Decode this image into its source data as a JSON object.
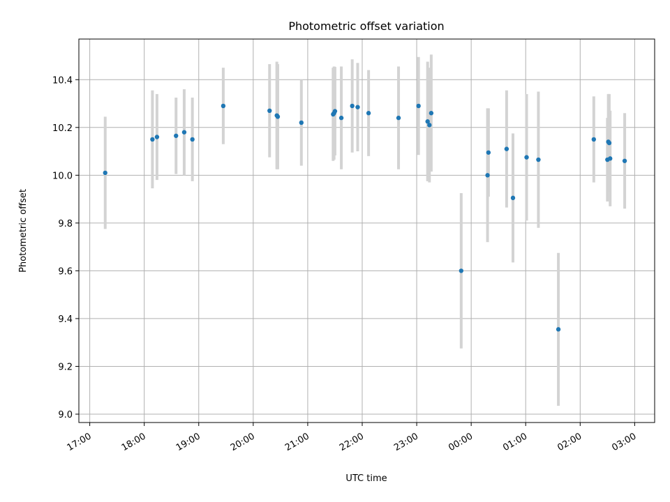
{
  "chart_data": {
    "type": "scatter",
    "title": "Photometric offset variation",
    "xlabel": "UTC time",
    "ylabel": "Photometric offset",
    "x_ticks": [
      "17:00",
      "18:00",
      "19:00",
      "20:00",
      "21:00",
      "22:00",
      "23:00",
      "00:00",
      "01:00",
      "02:00",
      "03:00"
    ],
    "y_ticks": [
      "9.0",
      "9.2",
      "9.4",
      "9.6",
      "9.8",
      "10.0",
      "10.2",
      "10.4"
    ],
    "x_range": [
      "16:48",
      "03:22"
    ],
    "ylim": [
      8.965,
      10.57
    ],
    "grid": true,
    "marker_color": "#1f77b4",
    "errorbar_color": "#d3d3d3",
    "points": [
      {
        "x": "17:17",
        "y": 10.01,
        "yerr": 0.235
      },
      {
        "x": "18:09",
        "y": 10.15,
        "yerr": 0.205
      },
      {
        "x": "18:14",
        "y": 10.16,
        "yerr": 0.18
      },
      {
        "x": "18:35",
        "y": 10.165,
        "yerr": 0.16
      },
      {
        "x": "18:44",
        "y": 10.18,
        "yerr": 0.18
      },
      {
        "x": "18:53",
        "y": 10.15,
        "yerr": 0.175
      },
      {
        "x": "19:27",
        "y": 10.29,
        "yerr": 0.16
      },
      {
        "x": "20:18",
        "y": 10.27,
        "yerr": 0.195
      },
      {
        "x": "20:26",
        "y": 10.25,
        "yerr": 0.225
      },
      {
        "x": "20:27",
        "y": 10.245,
        "yerr": 0.22
      },
      {
        "x": "20:53",
        "y": 10.22,
        "yerr": 0.18
      },
      {
        "x": "21:28",
        "y": 10.255,
        "yerr": 0.195
      },
      {
        "x": "21:29",
        "y": 10.26,
        "yerr": 0.195
      },
      {
        "x": "21:30",
        "y": 10.268,
        "yerr": 0.185
      },
      {
        "x": "21:37",
        "y": 10.24,
        "yerr": 0.215
      },
      {
        "x": "21:49",
        "y": 10.29,
        "yerr": 0.195
      },
      {
        "x": "21:55",
        "y": 10.285,
        "yerr": 0.185
      },
      {
        "x": "22:07",
        "y": 10.26,
        "yerr": 0.18
      },
      {
        "x": "22:40",
        "y": 10.24,
        "yerr": 0.215
      },
      {
        "x": "23:02",
        "y": 10.29,
        "yerr": 0.205
      },
      {
        "x": "23:12",
        "y": 10.225,
        "yerr": 0.25
      },
      {
        "x": "23:14",
        "y": 10.21,
        "yerr": 0.24
      },
      {
        "x": "23:16",
        "y": 10.26,
        "yerr": 0.245
      },
      {
        "x": "23:49",
        "y": 9.6,
        "yerr": 0.325
      },
      {
        "x": "00:18",
        "y": 10.0,
        "yerr": 0.28
      },
      {
        "x": "00:19",
        "y": 10.095,
        "yerr": 0.185
      },
      {
        "x": "00:39",
        "y": 10.11,
        "yerr": 0.245
      },
      {
        "x": "00:46",
        "y": 9.905,
        "yerr": 0.27
      },
      {
        "x": "01:01",
        "y": 10.075,
        "yerr": 0.265
      },
      {
        "x": "01:14",
        "y": 10.065,
        "yerr": 0.285
      },
      {
        "x": "01:36",
        "y": 9.355,
        "yerr": 0.32
      },
      {
        "x": "02:15",
        "y": 10.15,
        "yerr": 0.18
      },
      {
        "x": "02:30",
        "y": 10.065,
        "yerr": 0.175
      },
      {
        "x": "02:31",
        "y": 10.14,
        "yerr": 0.2
      },
      {
        "x": "02:32",
        "y": 10.135,
        "yerr": 0.205
      },
      {
        "x": "02:33",
        "y": 10.07,
        "yerr": 0.2
      },
      {
        "x": "02:49",
        "y": 10.06,
        "yerr": 0.2
      }
    ]
  }
}
